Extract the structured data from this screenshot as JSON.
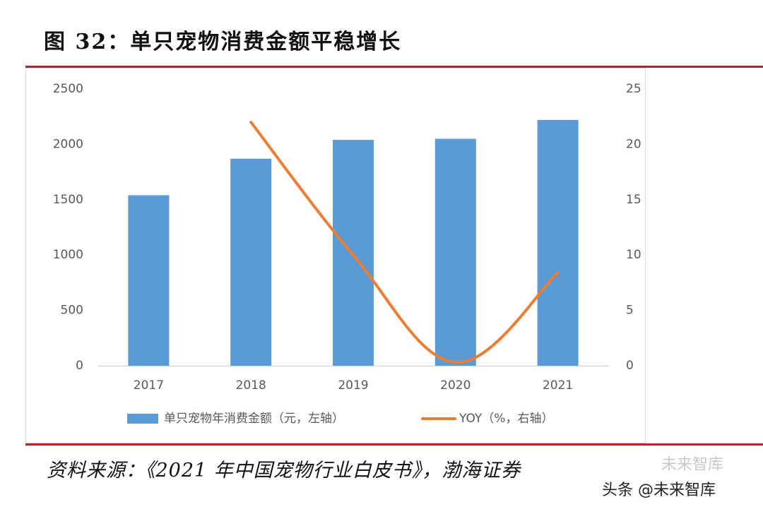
{
  "figure": {
    "title": "图 32：单只宠物消费金额平稳增长",
    "source": "资料来源：《2021 年中国宠物行业白皮书》，渤海证券",
    "watermark_back": "未来智库",
    "watermark": "头条 @未来智库"
  },
  "colors": {
    "bar": "#5b9bd5",
    "line": "#ed7d31",
    "axis_text": "#595959",
    "rule": "#a5282d"
  },
  "chart_data": {
    "type": "bar",
    "categories": [
      "2017",
      "2018",
      "2019",
      "2020",
      "2021"
    ],
    "series": [
      {
        "name": "单只宠物年消费金额（元，左轴）",
        "type": "bar",
        "axis": "left",
        "values": [
          1540,
          1870,
          2040,
          2050,
          2220
        ]
      },
      {
        "name": "YOY（%，右轴）",
        "type": "line",
        "axis": "right",
        "values": [
          null,
          22,
          10,
          0.3,
          8.4
        ]
      }
    ],
    "y_left": {
      "min": 0,
      "max": 2500,
      "ticks": [
        "0",
        "500",
        "1000",
        "1500",
        "2000",
        "2500"
      ]
    },
    "y_right": {
      "min": 0,
      "max": 25,
      "ticks": [
        "0",
        "5",
        "10",
        "15",
        "20",
        "25"
      ]
    },
    "grid": false,
    "legend_position": "bottom"
  }
}
